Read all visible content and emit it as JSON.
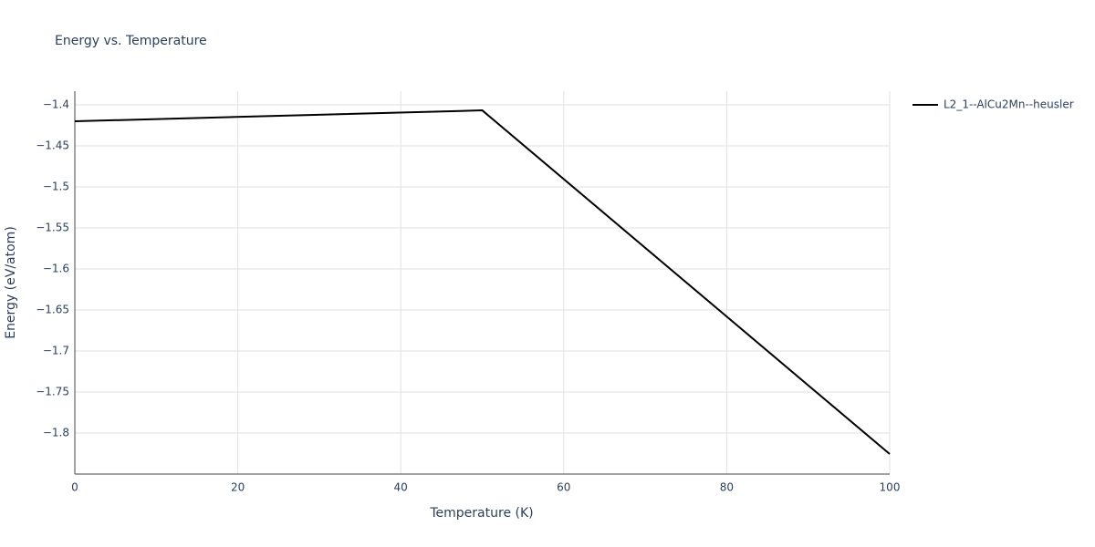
{
  "chart_data": {
    "type": "line",
    "title": "Energy vs. Temperature",
    "x_label": "Temperature (K)",
    "y_label": "Energy (eV/atom)",
    "x": [
      0,
      50,
      100
    ],
    "series": [
      {
        "name": "L2_1--AlCu2Mn--heusler",
        "color": "#000000",
        "values": [
          -1.42,
          -1.4067,
          -1.8256
        ]
      }
    ],
    "xlim": [
      0,
      100
    ],
    "xticks": [
      0,
      20,
      40,
      60,
      80,
      100
    ],
    "ylim": [
      -1.85,
      -1.3833
    ],
    "yticks": [
      {
        "value": -1.4,
        "label": "−1.4"
      },
      {
        "value": -1.45,
        "label": "−1.45"
      },
      {
        "value": -1.5,
        "label": "−1.5"
      },
      {
        "value": -1.55,
        "label": "−1.55"
      },
      {
        "value": -1.6,
        "label": "−1.6"
      },
      {
        "value": -1.65,
        "label": "−1.65"
      },
      {
        "value": -1.7,
        "label": "−1.7"
      },
      {
        "value": -1.75,
        "label": "−1.75"
      },
      {
        "value": -1.8,
        "label": "−1.8"
      }
    ],
    "grid": true
  }
}
